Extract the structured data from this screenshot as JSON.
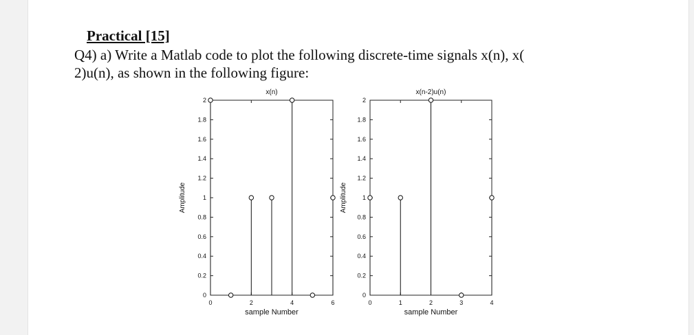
{
  "document": {
    "heading": "Practical [15]",
    "question_line1": "Q4) a) Write a Matlab code to plot the following discrete-time signals x(n), x(",
    "question_line2": "2)u(n), as shown in the following figure:"
  },
  "chart_data": [
    {
      "type": "stem",
      "title": "x(n)",
      "xlabel": "sample Number",
      "ylabel": "Amplitude",
      "xlim": [
        0,
        6
      ],
      "ylim": [
        0,
        2
      ],
      "x_ticks": [
        "0",
        "2",
        "4",
        "6"
      ],
      "y_ticks": [
        "0",
        "0.2",
        "0.4",
        "0.6",
        "0.8",
        "1",
        "1.2",
        "1.4",
        "1.6",
        "1.8",
        "2"
      ],
      "x": [
        0,
        1,
        2,
        3,
        4,
        5,
        6
      ],
      "y": [
        2,
        0,
        1,
        1,
        2,
        0,
        1
      ]
    },
    {
      "type": "stem",
      "title": "x(n-2)u(n)",
      "xlabel": "sample Number",
      "ylabel": "Amplitude",
      "xlim": [
        0,
        4
      ],
      "ylim": [
        0,
        2
      ],
      "x_ticks": [
        "0",
        "1",
        "2",
        "3",
        "4"
      ],
      "y_ticks": [
        "0",
        "0.2",
        "0.4",
        "0.6",
        "0.8",
        "1",
        "1.2",
        "1.4",
        "1.6",
        "1.8",
        "2"
      ],
      "x": [
        0,
        1,
        2,
        3,
        4
      ],
      "y": [
        1,
        1,
        2,
        0,
        1
      ]
    }
  ]
}
